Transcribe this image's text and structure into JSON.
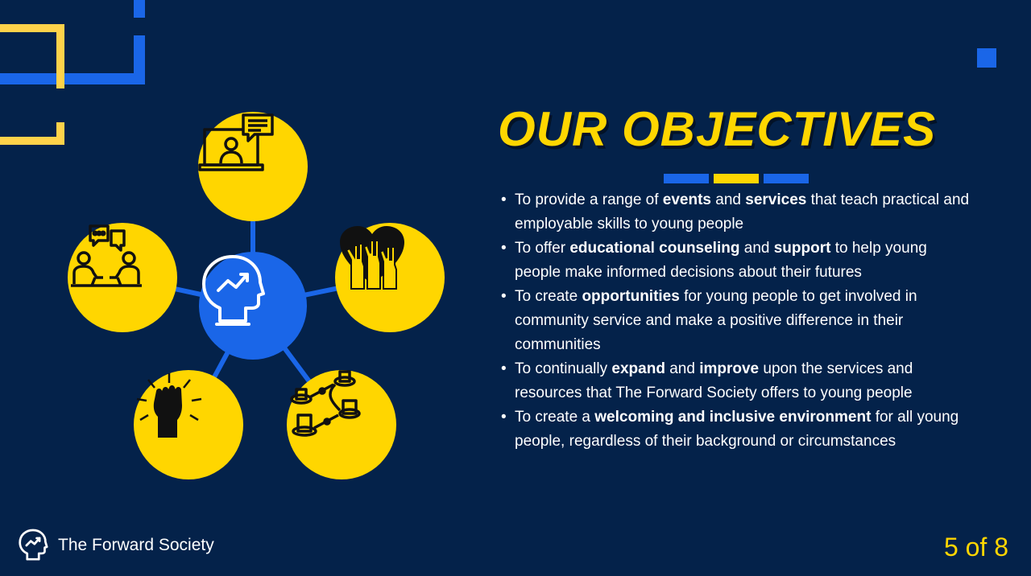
{
  "slide": {
    "title": "OUR OBJECTIVES",
    "title_bar_colors": [
      "#1a66e8",
      "#ffd600",
      "#1a66e8"
    ],
    "colors": {
      "background": "#04224a",
      "accent_blue": "#1a66e8",
      "accent_yellow": "#ffd600",
      "text": "#ffffff"
    },
    "objectives": [
      [
        {
          "t": "To provide a range of ",
          "b": false
        },
        {
          "t": "events",
          "b": true
        },
        {
          "t": " and ",
          "b": false
        },
        {
          "t": "services",
          "b": true
        },
        {
          "t": " that teach practical and employable skills to young people",
          "b": false
        }
      ],
      [
        {
          "t": "To offer ",
          "b": false
        },
        {
          "t": "educational counseling",
          "b": true
        },
        {
          "t": " and ",
          "b": false
        },
        {
          "t": "support",
          "b": true
        },
        {
          "t": " to help young people make informed decisions about their futures",
          "b": false
        }
      ],
      [
        {
          "t": "To create ",
          "b": false
        },
        {
          "t": "opportunities",
          "b": true
        },
        {
          "t": " for young people to get involved in community service and make a positive difference in their communities",
          "b": false
        }
      ],
      [
        {
          "t": "To continually ",
          "b": false
        },
        {
          "t": "expand",
          "b": true
        },
        {
          "t": " and ",
          "b": false
        },
        {
          "t": "improve",
          "b": true
        },
        {
          "t": " upon the services and resources that The Forward Society offers to young people",
          "b": false
        }
      ],
      [
        {
          "t": "To create a ",
          "b": false
        },
        {
          "t": "welcoming and inclusive environment",
          "b": true
        },
        {
          "t": " for all young people, regardless of their background or circumstances",
          "b": false
        }
      ]
    ]
  },
  "diagram": {
    "hub_icon": "head-growth-icon",
    "nodes": [
      {
        "icon": "laptop-video-call-icon"
      },
      {
        "icon": "heart-raised-hands-icon"
      },
      {
        "icon": "connected-podiums-icon"
      },
      {
        "icon": "raised-fist-icon"
      },
      {
        "icon": "people-conversation-icon"
      }
    ]
  },
  "footer": {
    "brand_name": "The Forward Society",
    "brand_icon": "head-growth-icon",
    "page_counter": "5 of 8"
  }
}
